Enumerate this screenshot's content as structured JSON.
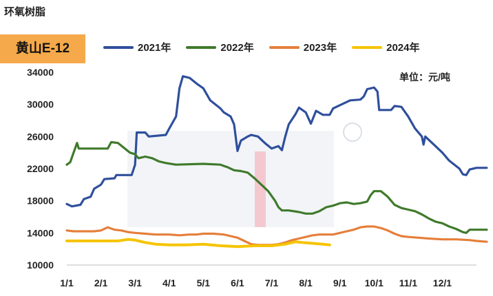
{
  "page_title": "环氧树脂",
  "chart_data": {
    "type": "line",
    "title": "黄山E-12",
    "unit": "单位：元/吨",
    "ylim": [
      10000,
      34000
    ],
    "yticks": [
      34000,
      30000,
      26000,
      22000,
      18000,
      14000,
      10000
    ],
    "ytick_labels": [
      "34000",
      "30000",
      "26000",
      "22000",
      "18000",
      "14000",
      "10000"
    ],
    "x_domain": [
      1,
      13
    ],
    "xticks": [
      1,
      2,
      3,
      4,
      5,
      6,
      7,
      8,
      9,
      10,
      11,
      12
    ],
    "xtick_labels": [
      "1/1",
      "2/1",
      "3/1",
      "4/1",
      "5/1",
      "6/1",
      "7/1",
      "8/1",
      "9/1",
      "10/1",
      "11/1",
      "12/1"
    ],
    "legend_position": "top",
    "series": [
      {
        "name": "2021年",
        "color": "#2f4f9c",
        "points": [
          [
            1.0,
            17600
          ],
          [
            1.15,
            17300
          ],
          [
            1.4,
            17500
          ],
          [
            1.5,
            18200
          ],
          [
            1.7,
            18500
          ],
          [
            1.8,
            19500
          ],
          [
            2.0,
            20000
          ],
          [
            2.1,
            20700
          ],
          [
            2.4,
            20800
          ],
          [
            2.45,
            21200
          ],
          [
            2.9,
            21200
          ],
          [
            3.0,
            22500
          ],
          [
            3.05,
            26500
          ],
          [
            3.3,
            26500
          ],
          [
            3.4,
            26000
          ],
          [
            3.9,
            26200
          ],
          [
            4.0,
            27000
          ],
          [
            4.2,
            28500
          ],
          [
            4.3,
            32000
          ],
          [
            4.4,
            33500
          ],
          [
            4.6,
            33300
          ],
          [
            4.8,
            32600
          ],
          [
            5.0,
            32000
          ],
          [
            5.2,
            30500
          ],
          [
            5.5,
            29500
          ],
          [
            5.6,
            29000
          ],
          [
            5.8,
            28500
          ],
          [
            5.9,
            27500
          ],
          [
            6.0,
            24200
          ],
          [
            6.1,
            25500
          ],
          [
            6.3,
            26000
          ],
          [
            6.4,
            26200
          ],
          [
            6.6,
            26000
          ],
          [
            6.8,
            25200
          ],
          [
            7.0,
            24500
          ],
          [
            7.2,
            24800
          ],
          [
            7.3,
            24300
          ],
          [
            7.4,
            26000
          ],
          [
            7.5,
            27500
          ],
          [
            7.7,
            28800
          ],
          [
            7.8,
            29600
          ],
          [
            8.0,
            29000
          ],
          [
            8.15,
            27600
          ],
          [
            8.3,
            29200
          ],
          [
            8.5,
            28700
          ],
          [
            8.7,
            28700
          ],
          [
            8.8,
            29500
          ],
          [
            9.0,
            29900
          ],
          [
            9.3,
            30500
          ],
          [
            9.6,
            30600
          ],
          [
            9.7,
            31000
          ],
          [
            9.8,
            31900
          ],
          [
            10.0,
            32100
          ],
          [
            10.1,
            31600
          ],
          [
            10.15,
            29300
          ],
          [
            10.5,
            29300
          ],
          [
            10.6,
            29800
          ],
          [
            10.8,
            29700
          ],
          [
            11.0,
            28500
          ],
          [
            11.2,
            27000
          ],
          [
            11.4,
            26000
          ],
          [
            11.45,
            25000
          ],
          [
            11.5,
            26000
          ],
          [
            11.8,
            24800
          ],
          [
            12.0,
            24000
          ],
          [
            12.2,
            23000
          ],
          [
            12.5,
            22000
          ],
          [
            12.6,
            21300
          ],
          [
            12.7,
            21200
          ],
          [
            12.8,
            21900
          ],
          [
            13.0,
            22100
          ],
          [
            13.3,
            22100
          ]
        ]
      },
      {
        "name": "2022年",
        "color": "#3f7a2b",
        "points": [
          [
            1.0,
            22500
          ],
          [
            1.1,
            22800
          ],
          [
            1.2,
            24000
          ],
          [
            1.3,
            25200
          ],
          [
            1.35,
            24500
          ],
          [
            1.6,
            24500
          ],
          [
            2.0,
            24500
          ],
          [
            2.2,
            24500
          ],
          [
            2.3,
            25300
          ],
          [
            2.5,
            25200
          ],
          [
            2.7,
            24500
          ],
          [
            2.85,
            24000
          ],
          [
            3.0,
            23800
          ],
          [
            3.1,
            23300
          ],
          [
            3.3,
            23500
          ],
          [
            3.5,
            23300
          ],
          [
            3.7,
            22900
          ],
          [
            3.9,
            22700
          ],
          [
            4.2,
            22500
          ],
          [
            5.0,
            22600
          ],
          [
            5.5,
            22500
          ],
          [
            5.7,
            22200
          ],
          [
            5.9,
            21800
          ],
          [
            6.1,
            21700
          ],
          [
            6.3,
            21500
          ],
          [
            6.5,
            20800
          ],
          [
            6.7,
            20000
          ],
          [
            6.9,
            19200
          ],
          [
            7.1,
            18000
          ],
          [
            7.2,
            17200
          ],
          [
            7.3,
            16800
          ],
          [
            7.5,
            16800
          ],
          [
            7.8,
            16600
          ],
          [
            8.0,
            16400
          ],
          [
            8.2,
            16400
          ],
          [
            8.4,
            16700
          ],
          [
            8.6,
            17200
          ],
          [
            8.8,
            17400
          ],
          [
            9.0,
            17700
          ],
          [
            9.2,
            17800
          ],
          [
            9.4,
            17600
          ],
          [
            9.6,
            17700
          ],
          [
            9.8,
            17900
          ],
          [
            9.9,
            18700
          ],
          [
            10.0,
            19200
          ],
          [
            10.2,
            19200
          ],
          [
            10.4,
            18500
          ],
          [
            10.6,
            17500
          ],
          [
            10.8,
            17100
          ],
          [
            11.0,
            16900
          ],
          [
            11.2,
            16700
          ],
          [
            11.4,
            16300
          ],
          [
            11.6,
            15800
          ],
          [
            11.8,
            15400
          ],
          [
            12.0,
            15200
          ],
          [
            12.2,
            14800
          ],
          [
            12.4,
            14500
          ],
          [
            12.6,
            14100
          ],
          [
            12.7,
            14000
          ],
          [
            12.8,
            14400
          ],
          [
            13.0,
            14400
          ],
          [
            13.3,
            14400
          ]
        ]
      },
      {
        "name": "2023年",
        "color": "#e57f3b",
        "points": [
          [
            1.0,
            14300
          ],
          [
            1.2,
            14200
          ],
          [
            1.5,
            14200
          ],
          [
            1.8,
            14200
          ],
          [
            2.0,
            14300
          ],
          [
            2.2,
            14700
          ],
          [
            2.4,
            14400
          ],
          [
            2.6,
            14300
          ],
          [
            2.8,
            14100
          ],
          [
            3.0,
            14000
          ],
          [
            3.3,
            13900
          ],
          [
            3.6,
            13800
          ],
          [
            4.0,
            13800
          ],
          [
            4.3,
            13700
          ],
          [
            4.6,
            13800
          ],
          [
            4.8,
            13800
          ],
          [
            5.0,
            13900
          ],
          [
            5.3,
            13900
          ],
          [
            5.6,
            13800
          ],
          [
            5.8,
            13600
          ],
          [
            6.0,
            13400
          ],
          [
            6.2,
            13000
          ],
          [
            6.4,
            12600
          ],
          [
            6.6,
            12500
          ],
          [
            6.8,
            12500
          ],
          [
            7.0,
            12500
          ],
          [
            7.2,
            12600
          ],
          [
            7.4,
            12800
          ],
          [
            7.6,
            13100
          ],
          [
            7.8,
            13300
          ],
          [
            8.0,
            13500
          ],
          [
            8.2,
            13700
          ],
          [
            8.4,
            13800
          ],
          [
            8.6,
            13800
          ],
          [
            8.8,
            13800
          ],
          [
            9.0,
            14000
          ],
          [
            9.2,
            14200
          ],
          [
            9.4,
            14400
          ],
          [
            9.6,
            14700
          ],
          [
            9.8,
            14800
          ],
          [
            10.0,
            14800
          ],
          [
            10.2,
            14600
          ],
          [
            10.4,
            14300
          ],
          [
            10.6,
            13900
          ],
          [
            10.8,
            13600
          ],
          [
            11.0,
            13500
          ],
          [
            11.3,
            13400
          ],
          [
            11.6,
            13300
          ],
          [
            12.0,
            13200
          ],
          [
            12.4,
            13200
          ],
          [
            12.8,
            13100
          ],
          [
            13.0,
            13000
          ],
          [
            13.3,
            12900
          ]
        ]
      },
      {
        "name": "2024年",
        "color": "#f5c400",
        "points": [
          [
            1.0,
            13000
          ],
          [
            1.5,
            13000
          ],
          [
            2.0,
            13000
          ],
          [
            2.5,
            13000
          ],
          [
            2.8,
            13200
          ],
          [
            3.0,
            13100
          ],
          [
            3.3,
            12800
          ],
          [
            3.6,
            12600
          ],
          [
            4.0,
            12500
          ],
          [
            4.5,
            12500
          ],
          [
            5.0,
            12600
          ],
          [
            5.5,
            12400
          ],
          [
            6.0,
            12300
          ],
          [
            6.5,
            12400
          ],
          [
            7.0,
            12400
          ],
          [
            7.4,
            12600
          ],
          [
            7.7,
            12900
          ],
          [
            7.9,
            12800
          ],
          [
            8.2,
            12700
          ],
          [
            8.5,
            12600
          ],
          [
            8.7,
            12500
          ]
        ]
      }
    ]
  }
}
